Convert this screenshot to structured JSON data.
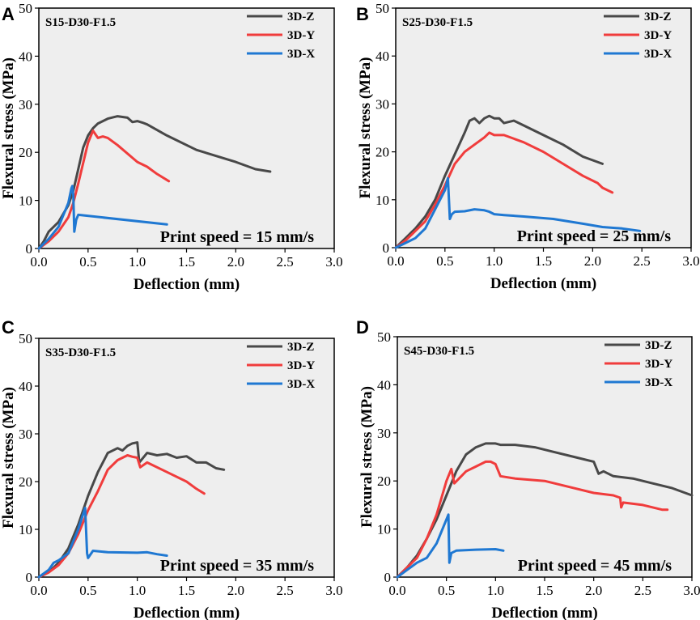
{
  "colors": {
    "3D-Z": "#484848",
    "3D-Y": "#f03c3c",
    "3D-X": "#1f78d2",
    "plot_bg": "#eeeeee"
  },
  "chart_data": [
    {
      "type": "line",
      "panel": "A",
      "sample": "S15-D30-F1.5",
      "annotation": "Print speed = 15 mm/s",
      "xlabel": "Deflection (mm)",
      "ylabel": "Flexural stress (MPa)",
      "xlim": [
        0,
        3
      ],
      "ylim": [
        0,
        50
      ],
      "xticks": [
        "0.0",
        "0.5",
        "1.0",
        "1.5",
        "2.0",
        "2.5",
        "3.0"
      ],
      "yticks": [
        "0",
        "10",
        "20",
        "30",
        "40",
        "50"
      ],
      "series": [
        {
          "name": "3D-Z",
          "x": [
            0,
            0.05,
            0.1,
            0.2,
            0.3,
            0.35,
            0.45,
            0.5,
            0.55,
            0.6,
            0.7,
            0.8,
            0.9,
            0.95,
            1.0,
            1.05,
            1.1,
            1.3,
            1.6,
            2.0,
            2.2,
            2.35
          ],
          "y": [
            0,
            1.5,
            3.5,
            5.5,
            9,
            12,
            21,
            23.5,
            25,
            26,
            27,
            27.5,
            27.2,
            26.3,
            26.5,
            26.2,
            25.8,
            23.5,
            20.5,
            18,
            16.5,
            16
          ]
        },
        {
          "name": "3D-Y",
          "x": [
            0,
            0.1,
            0.2,
            0.3,
            0.35,
            0.4,
            0.5,
            0.55,
            0.6,
            0.65,
            0.7,
            0.8,
            1.0,
            1.1,
            1.2,
            1.32
          ],
          "y": [
            0,
            1.5,
            3.5,
            6.5,
            9.5,
            13.5,
            22,
            24.5,
            23,
            23.3,
            23,
            21.5,
            18,
            17,
            15.5,
            14
          ]
        },
        {
          "name": "3D-X",
          "x": [
            0,
            0.1,
            0.2,
            0.3,
            0.33,
            0.34,
            0.35,
            0.36,
            0.38,
            0.4,
            1.3
          ],
          "y": [
            0,
            2,
            4.5,
            9.5,
            12.5,
            13,
            11,
            3.5,
            6,
            7,
            5
          ]
        }
      ]
    },
    {
      "type": "line",
      "panel": "B",
      "sample": "S25-D30-F1.5",
      "annotation": "Print speed = 25 mm/s",
      "xlabel": "Deflection (mm)",
      "ylabel": "Flexural stress (MPa)",
      "xlim": [
        0,
        3
      ],
      "ylim": [
        0,
        50
      ],
      "xticks": [
        "0.0",
        "0.5",
        "1.0",
        "1.5",
        "2.0",
        "2.5",
        "3.0"
      ],
      "yticks": [
        "0",
        "10",
        "20",
        "30",
        "40",
        "50"
      ],
      "series": [
        {
          "name": "3D-Z",
          "x": [
            0,
            0.1,
            0.2,
            0.3,
            0.4,
            0.5,
            0.6,
            0.7,
            0.75,
            0.8,
            0.85,
            0.9,
            0.95,
            1.0,
            1.05,
            1.1,
            1.2,
            1.3,
            1.5,
            1.7,
            1.9,
            2.1
          ],
          "y": [
            0,
            2,
            4,
            6.5,
            10,
            15,
            19.5,
            24,
            26.5,
            27,
            26,
            27,
            27.5,
            27,
            27,
            26,
            26.5,
            25.5,
            23.5,
            21.5,
            19,
            17.5
          ]
        },
        {
          "name": "3D-Y",
          "x": [
            0,
            0.1,
            0.2,
            0.3,
            0.4,
            0.5,
            0.6,
            0.7,
            0.8,
            0.9,
            0.95,
            1.0,
            1.1,
            1.3,
            1.5,
            1.7,
            1.9,
            2.05,
            2.1,
            2.2
          ],
          "y": [
            0,
            1.5,
            3.5,
            5.5,
            9,
            13,
            17.5,
            20,
            21.5,
            23,
            24,
            23.5,
            23.5,
            22,
            20,
            17.5,
            15,
            13.5,
            12.5,
            11.5
          ]
        },
        {
          "name": "3D-X",
          "x": [
            0,
            0.1,
            0.2,
            0.3,
            0.4,
            0.5,
            0.53,
            0.55,
            0.57,
            0.6,
            0.7,
            0.8,
            0.9,
            0.95,
            1.0,
            1.1,
            1.3,
            1.6,
            1.9,
            2.1,
            2.3,
            2.48
          ],
          "y": [
            0,
            1,
            2,
            4,
            8,
            12,
            14.5,
            6,
            7,
            7.5,
            7.6,
            8,
            7.8,
            7.5,
            7,
            6.8,
            6.5,
            6,
            5,
            4.3,
            4,
            3.5
          ]
        }
      ]
    },
    {
      "type": "line",
      "panel": "C",
      "sample": "S35-D30-F1.5",
      "annotation": "Print speed = 35 mm/s",
      "xlabel": "Deflection (mm)",
      "ylabel": "Flexural stress (MPa)",
      "xlim": [
        0,
        3
      ],
      "ylim": [
        0,
        50
      ],
      "xticks": [
        "0.0",
        "0.5",
        "1.0",
        "1.5",
        "2.0",
        "2.5",
        "3.0"
      ],
      "yticks": [
        "0",
        "10",
        "20",
        "30",
        "40",
        "50"
      ],
      "series": [
        {
          "name": "3D-Z",
          "x": [
            0,
            0.1,
            0.2,
            0.3,
            0.4,
            0.5,
            0.6,
            0.7,
            0.8,
            0.85,
            0.9,
            0.95,
            1.0,
            1.02,
            1.1,
            1.2,
            1.3,
            1.4,
            1.5,
            1.6,
            1.7,
            1.8,
            1.88
          ],
          "y": [
            0,
            1,
            3,
            6,
            11,
            17,
            22,
            26,
            27,
            26.5,
            27.5,
            28,
            28.2,
            24,
            26,
            25.5,
            25.8,
            25,
            25.3,
            24,
            24,
            22.8,
            22.5
          ]
        },
        {
          "name": "3D-Y",
          "x": [
            0,
            0.1,
            0.2,
            0.3,
            0.4,
            0.5,
            0.6,
            0.7,
            0.8,
            0.9,
            0.95,
            1.0,
            1.03,
            1.1,
            1.3,
            1.5,
            1.6,
            1.68
          ],
          "y": [
            0,
            1,
            2.5,
            5,
            9,
            14,
            18,
            22.5,
            24.5,
            25.5,
            25.2,
            25,
            23,
            24,
            22,
            20,
            18.5,
            17.5
          ]
        },
        {
          "name": "3D-X",
          "x": [
            0,
            0.1,
            0.15,
            0.2,
            0.3,
            0.4,
            0.47,
            0.49,
            0.5,
            0.55,
            0.7,
            1.0,
            1.1,
            1.2,
            1.3
          ],
          "y": [
            0,
            1.5,
            3,
            3.5,
            5,
            10,
            14.5,
            5,
            4,
            5.5,
            5.2,
            5.1,
            5.2,
            4.8,
            4.5
          ]
        }
      ]
    },
    {
      "type": "line",
      "panel": "D",
      "sample": "S45-D30-F1.5",
      "annotation": "Print speed = 45 mm/s",
      "xlabel": "Deflection (mm)",
      "ylabel": "Flexural stress (MPa)",
      "xlim": [
        0,
        3
      ],
      "ylim": [
        0,
        50
      ],
      "xticks": [
        "0.0",
        "0.5",
        "1.0",
        "1.5",
        "2.0",
        "2.5",
        "3.0"
      ],
      "yticks": [
        "0",
        "10",
        "20",
        "30",
        "40",
        "50"
      ],
      "series": [
        {
          "name": "3D-Z",
          "x": [
            0,
            0.1,
            0.2,
            0.3,
            0.4,
            0.5,
            0.6,
            0.7,
            0.8,
            0.9,
            1.0,
            1.05,
            1.2,
            1.4,
            1.6,
            1.8,
            2.0,
            2.05,
            2.1,
            2.2,
            2.4,
            2.6,
            2.8,
            3.0
          ],
          "y": [
            0,
            2,
            4.5,
            8,
            12,
            17,
            22,
            25.5,
            27,
            27.8,
            27.8,
            27.5,
            27.5,
            27,
            26,
            25,
            24,
            21.5,
            22,
            21,
            20.5,
            19.5,
            18.5,
            17
          ]
        },
        {
          "name": "3D-Y",
          "x": [
            0,
            0.1,
            0.2,
            0.3,
            0.4,
            0.5,
            0.55,
            0.58,
            0.7,
            0.8,
            0.9,
            0.95,
            1.0,
            1.05,
            1.2,
            1.5,
            1.8,
            2.0,
            2.2,
            2.27,
            2.28,
            2.3,
            2.5,
            2.7,
            2.75
          ],
          "y": [
            0,
            2,
            4,
            8,
            13,
            20,
            22.5,
            19.5,
            22,
            23,
            24,
            24,
            23.5,
            21,
            20.5,
            20,
            18.5,
            17.5,
            17,
            16.5,
            14.5,
            15.5,
            15,
            14,
            14
          ]
        },
        {
          "name": "3D-X",
          "x": [
            0,
            0.1,
            0.2,
            0.3,
            0.4,
            0.5,
            0.52,
            0.53,
            0.55,
            0.6,
            0.8,
            1.0,
            1.08
          ],
          "y": [
            0,
            1.5,
            3,
            4,
            7,
            12,
            13,
            3,
            5,
            5.5,
            5.7,
            5.8,
            5.5
          ]
        }
      ]
    }
  ]
}
